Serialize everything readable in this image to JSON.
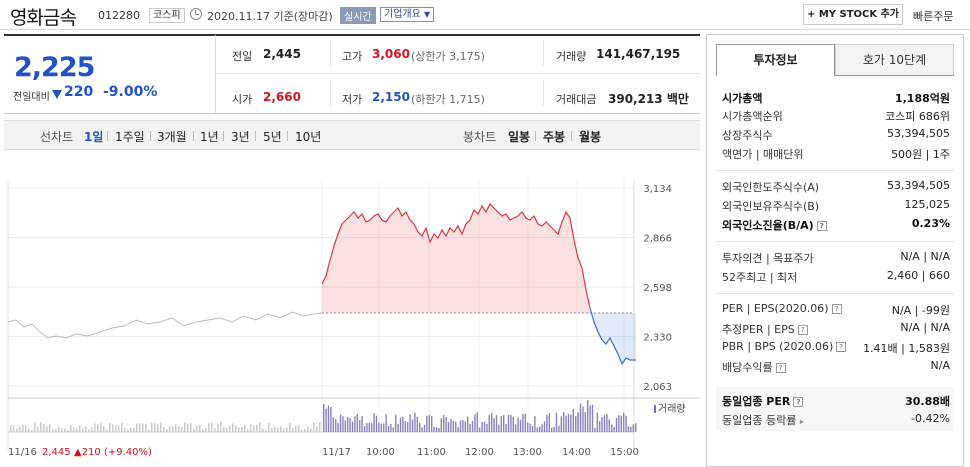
{
  "header": {
    "company": "영화금속",
    "code": "012280",
    "market": "코스피",
    "date": "2020.11.17 기준(장마감)",
    "realtime": "실시간",
    "corp_info": "기업개요",
    "my_stock": "+ MY STOCK 추가",
    "quick_order": "빠른주문"
  },
  "quote": {
    "price": "2,225",
    "prev_label": "전일대비",
    "change": "220",
    "change_pct": "-9.00%"
  },
  "summary": {
    "prev_label": "전일",
    "prev": "2,445",
    "high_label": "고가",
    "high": "3,060",
    "upper_limit": "(상한가 3,175)",
    "volume_label": "거래량",
    "volume": "141,467,195",
    "open_label": "시가",
    "open": "2,660",
    "low_label": "저가",
    "low": "2,150",
    "lower_limit": "(하한가 1,715)",
    "amount_label": "거래대금",
    "amount": "390,213 백만"
  },
  "periods": {
    "line_label": "선차트",
    "line": [
      "1일",
      "1주일",
      "3개월",
      "1년",
      "3년",
      "5년",
      "10년"
    ],
    "candle_label": "봉차트",
    "candle": [
      "일봉",
      "주봉",
      "월봉"
    ]
  },
  "chart_data": {
    "type": "area",
    "y_ticks": [
      "3,134",
      "2,866",
      "2,598",
      "2,330",
      "2,063"
    ],
    "x_ticks": [
      "11/16",
      "11/17",
      "10:00",
      "11:00",
      "12:00",
      "13:00",
      "14:00",
      "15:00"
    ],
    "ylim": [
      2063,
      3134
    ],
    "reference_price": 2445,
    "volume_label": "거래량",
    "prev_day_summary": {
      "date": "11/16",
      "close": "2,445",
      "change": "▲210 (+9.40%)"
    }
  },
  "side": {
    "tab_invest": "투자정보",
    "tab_hoga": "호가 10단계",
    "market_cap_label": "시가총액",
    "market_cap": "1,188억원",
    "market_cap_rank_label": "시가총액순위",
    "market_cap_rank": "코스피 686위",
    "shares_label": "상장주식수",
    "shares": "53,394,505",
    "face_label": "액면가 | 매매단위",
    "face": "500원 | 1주",
    "foreign_limit_label": "외국인한도주식수(A)",
    "foreign_limit": "53,394,505",
    "foreign_hold_label": "외국인보유주식수(B)",
    "foreign_hold": "125,025",
    "foreign_ratio_label": "외국인소진율(B/A)",
    "foreign_ratio": "0.23%",
    "opinion_label": "투자의견 | 목표주가",
    "opinion": "N/A | N/A",
    "w52_label": "52주최고 | 최저",
    "w52": "2,460 | 660",
    "per_label": "PER | EPS(2020.06)",
    "per": "N/A | -99원",
    "est_per_label": "추정PER | EPS",
    "est_per": "N/A | N/A",
    "pbr_label": "PBR | BPS (2020.06)",
    "pbr": "1.41배 | 1,583원",
    "dividend_label": "배당수익률",
    "dividend": "N/A",
    "ind_per_label": "동일업종 PER",
    "ind_per": "30.88배",
    "ind_rate_label": "동일업종 등락률",
    "ind_rate": "-0.42%"
  }
}
